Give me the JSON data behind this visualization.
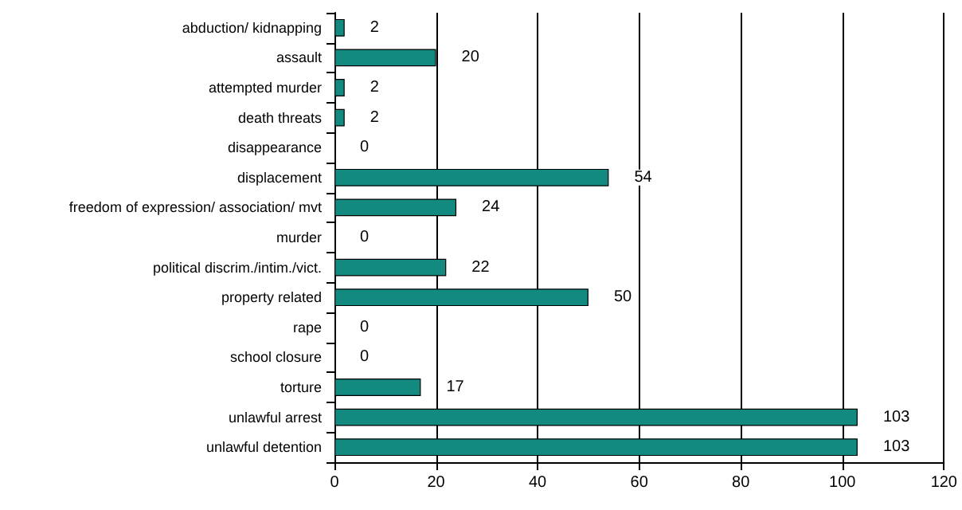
{
  "chart_data": {
    "type": "bar",
    "orientation": "horizontal",
    "categories": [
      "abduction/ kidnapping",
      "assault",
      "attempted murder",
      "death threats",
      "disappearance",
      "displacement",
      "freedom of expression/ association/ mvt",
      "murder",
      "political discrim./intim./vict.",
      "property related",
      "rape",
      "school closure",
      "torture",
      "unlawful arrest",
      "unlawful detention"
    ],
    "values": [
      2,
      20,
      2,
      2,
      0,
      54,
      24,
      0,
      22,
      50,
      0,
      0,
      17,
      103,
      103
    ],
    "color": "#138a80",
    "data_labels": true,
    "xlim": [
      0,
      120
    ],
    "xticks": [
      0,
      20,
      40,
      60,
      80,
      100,
      120
    ],
    "grid": "x"
  }
}
